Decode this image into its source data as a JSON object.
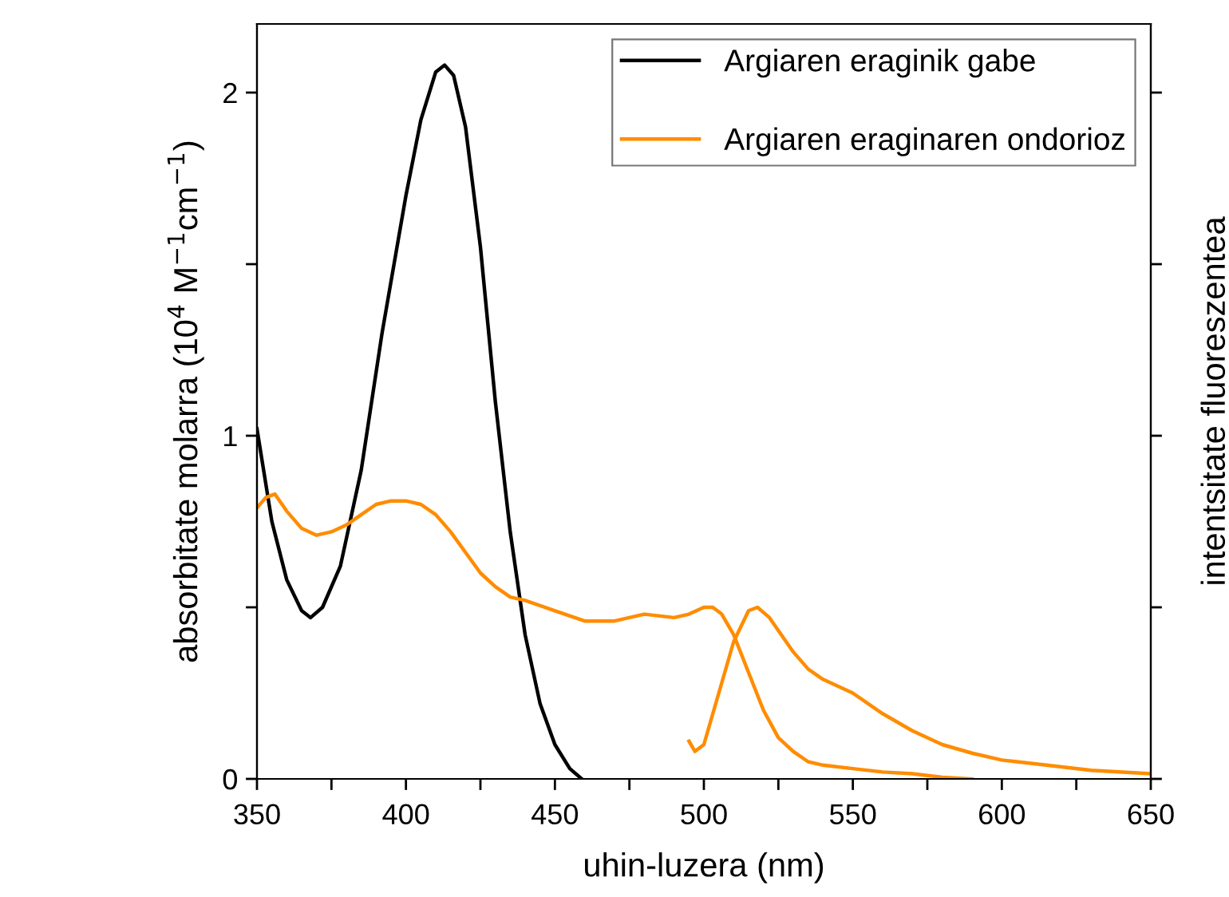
{
  "chart_data": {
    "type": "line",
    "xlabel": "uhin-luzera (nm)",
    "ylabel": "absorbitate molarra (10$^{4}$ M$^{−1}$cm$^{−1}$)",
    "y2label": "intentsitate fluoreszentea",
    "xlim": [
      350,
      650
    ],
    "ylim": [
      0,
      2.2
    ],
    "xticks": [
      350,
      {
        "value": 375,
        "label": null
      },
      400,
      {
        "value": 425,
        "label": null
      },
      450,
      {
        "value": 475,
        "label": null
      },
      500,
      {
        "value": 525,
        "label": null
      },
      550,
      {
        "value": 575,
        "label": null
      },
      600,
      {
        "value": 625,
        "label": null
      },
      650
    ],
    "yticks": [
      0,
      {
        "value": 0.5,
        "label": null
      },
      1,
      {
        "value": 1.5,
        "label": null
      },
      2
    ],
    "grid": false,
    "legend": "top right",
    "marker": "none",
    "line_style": "solid",
    "series": [
      {
        "name": "Argiaren eraginik gabe",
        "color": "#000000",
        "x": [
          350,
          355,
          360,
          365,
          368,
          372,
          378,
          385,
          392,
          400,
          405,
          410,
          413,
          416,
          420,
          425,
          430,
          435,
          440,
          445,
          450,
          455,
          459
        ],
        "values": [
          1.02,
          0.75,
          0.58,
          0.49,
          0.47,
          0.5,
          0.62,
          0.9,
          1.3,
          1.7,
          1.92,
          2.06,
          2.08,
          2.05,
          1.9,
          1.55,
          1.1,
          0.72,
          0.42,
          0.22,
          0.1,
          0.03,
          0.0
        ]
      },
      {
        "name": "Argiaren eraginaren ondorioz",
        "color": "#ff8c00",
        "x": [
          350,
          353,
          356,
          360,
          365,
          370,
          375,
          380,
          385,
          390,
          395,
          400,
          405,
          410,
          415,
          420,
          425,
          430,
          435,
          440,
          450,
          460,
          465,
          470,
          480,
          490,
          495,
          500,
          503,
          506,
          510,
          515,
          520,
          525,
          530,
          535,
          540,
          550,
          560,
          570,
          575,
          580,
          590
        ],
        "values": [
          0.79,
          0.82,
          0.83,
          0.78,
          0.73,
          0.71,
          0.72,
          0.74,
          0.77,
          0.8,
          0.81,
          0.81,
          0.8,
          0.77,
          0.72,
          0.66,
          0.6,
          0.56,
          0.53,
          0.52,
          0.49,
          0.46,
          0.46,
          0.46,
          0.48,
          0.47,
          0.48,
          0.5,
          0.5,
          0.48,
          0.42,
          0.31,
          0.2,
          0.12,
          0.08,
          0.05,
          0.04,
          0.03,
          0.02,
          0.015,
          0.01,
          0.005,
          0.0
        ]
      },
      {
        "color": "#ff8c00",
        "x": [
          495,
          497,
          500,
          505,
          510,
          515,
          518,
          522,
          530,
          535,
          540,
          550,
          560,
          570,
          580,
          590,
          600,
          615,
          630,
          650
        ],
        "values": [
          0.11,
          0.08,
          0.1,
          0.25,
          0.4,
          0.49,
          0.5,
          0.47,
          0.37,
          0.32,
          0.29,
          0.25,
          0.19,
          0.14,
          0.1,
          0.075,
          0.055,
          0.04,
          0.025,
          0.015
        ]
      }
    ]
  }
}
